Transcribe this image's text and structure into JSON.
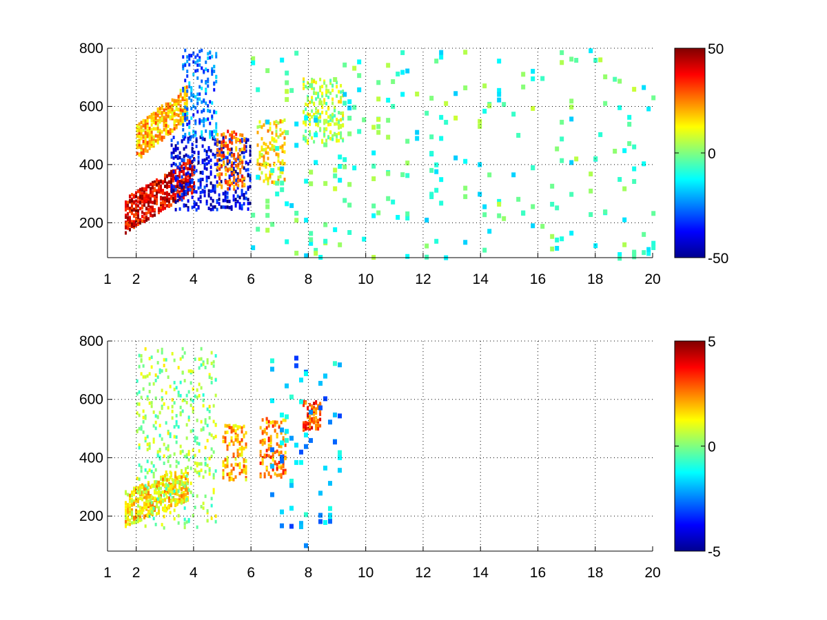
{
  "chart_data": [
    {
      "type": "heatmap",
      "title": "",
      "xlabel": "",
      "ylabel": "",
      "xlim": [
        1,
        20
      ],
      "ylim": [
        80,
        800
      ],
      "xticks": [
        1,
        2,
        4,
        6,
        8,
        10,
        12,
        14,
        16,
        18,
        20
      ],
      "yticks": [
        200,
        400,
        600,
        800
      ],
      "grid": true,
      "colormap": "jet",
      "clim": [
        -50,
        50
      ],
      "colorbar_ticks": [
        50,
        0,
        -50
      ],
      "features": [
        {
          "kind": "band",
          "x_range": [
            1.6,
            4.0
          ],
          "y_start": 230,
          "y_slope": 60,
          "value": 40
        },
        {
          "kind": "band",
          "x_range": [
            2.0,
            3.8
          ],
          "y_start": 480,
          "y_slope": 80,
          "value": 20
        },
        {
          "kind": "blob",
          "x_range": [
            3.2,
            6.0
          ],
          "y_range": [
            250,
            500
          ],
          "value": -40
        },
        {
          "kind": "blob",
          "x_range": [
            3.6,
            4.8
          ],
          "y_range": [
            500,
            800
          ],
          "value": -25
        },
        {
          "kind": "blob",
          "x_range": [
            4.8,
            5.8
          ],
          "y_range": [
            320,
            520
          ],
          "value": 25
        },
        {
          "kind": "blob",
          "x_range": [
            6.2,
            7.2
          ],
          "y_range": [
            340,
            560
          ],
          "value": 15
        },
        {
          "kind": "blob",
          "x_range": [
            7.8,
            9.2
          ],
          "y_range": [
            480,
            700
          ],
          "value": 5
        },
        {
          "kind": "scatter",
          "x_range": [
            6.0,
            20.0
          ],
          "y_range": [
            80,
            800
          ],
          "value": -5
        }
      ]
    },
    {
      "type": "heatmap",
      "title": "",
      "xlabel": "",
      "ylabel": "",
      "xlim": [
        1,
        20
      ],
      "ylim": [
        80,
        800
      ],
      "xticks": [
        1,
        2,
        4,
        6,
        8,
        10,
        12,
        14,
        16,
        18,
        20
      ],
      "yticks": [
        200,
        400,
        600,
        800
      ],
      "grid": true,
      "colormap": "jet",
      "clim": [
        -5,
        5
      ],
      "colorbar_ticks": [
        5,
        0,
        -5
      ],
      "features": [
        {
          "kind": "band",
          "x_range": [
            1.6,
            3.8
          ],
          "y_start": 230,
          "y_slope": 40,
          "value": 1.5
        },
        {
          "kind": "blob",
          "x_range": [
            2.0,
            4.8
          ],
          "y_range": [
            160,
            780
          ],
          "value": 0.3
        },
        {
          "kind": "blob",
          "x_range": [
            5.0,
            5.8
          ],
          "y_range": [
            330,
            520
          ],
          "value": 2.0
        },
        {
          "kind": "blob",
          "x_range": [
            6.3,
            7.2
          ],
          "y_range": [
            340,
            540
          ],
          "value": 2.5
        },
        {
          "kind": "blob",
          "x_range": [
            7.8,
            8.4
          ],
          "y_range": [
            500,
            600
          ],
          "value": 3.0
        },
        {
          "kind": "scatter",
          "x_range": [
            6.5,
            9.2
          ],
          "y_range": [
            100,
            760
          ],
          "value": -2.0
        }
      ]
    }
  ]
}
